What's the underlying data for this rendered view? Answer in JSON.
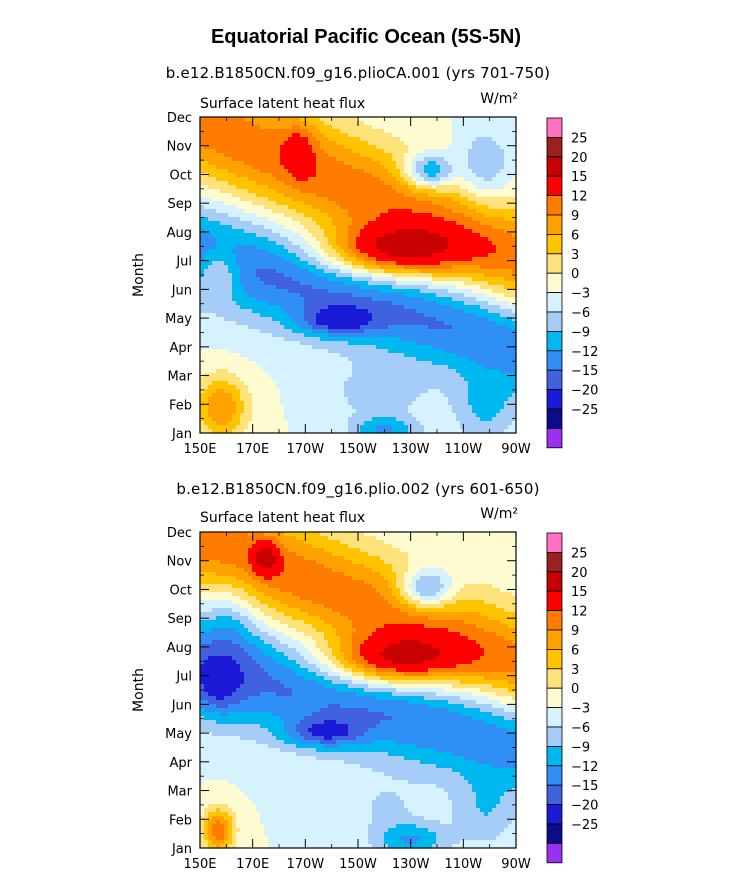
{
  "figure": {
    "title": "Equatorial Pacific Ocean (5S-5N)"
  },
  "palette": [
    "#9b30f0",
    "#0c0c8a",
    "#1b1bd7",
    "#4162e0",
    "#2f8ff5",
    "#00b8f0",
    "#a6cdf7",
    "#d6f2ff",
    "#fffbd0",
    "#ffe27a",
    "#ffc300",
    "#ffa200",
    "#ff7c00",
    "#ff0000",
    "#c80000",
    "#9b2020",
    "#ff71c2"
  ],
  "chart_data": [
    {
      "type": "heatmap",
      "subtitle": "b.e12.B1850CN.f09_g16.plioCA.001 (yrs 701-750)",
      "left_label": "Surface latent heat flux",
      "units": "W/m²",
      "ylabel": "Month",
      "xlabel": "",
      "x_tick_labels": [
        "150E",
        "170E",
        "170W",
        "150W",
        "130W",
        "110W",
        "90W"
      ],
      "x_tick_lons": [
        150,
        170,
        190,
        210,
        230,
        250,
        270
      ],
      "y_tick_labels": [
        "Jan",
        "Feb",
        "Mar",
        "Apr",
        "May",
        "Jun",
        "Jul",
        "Aug",
        "Sep",
        "Oct",
        "Nov",
        "Dec"
      ],
      "levels": [
        -25,
        -20,
        -15,
        -12,
        -9,
        -6,
        -3,
        0,
        3,
        6,
        9,
        12,
        15,
        20,
        25
      ],
      "colorbar_labels": [
        "25",
        "20",
        "15",
        "12",
        "9",
        "6",
        "3",
        "0",
        "−3",
        "−6",
        "−9",
        "−12",
        "−15",
        "−20",
        "−25"
      ],
      "xlim": [
        150,
        270
      ],
      "ylim": [
        1,
        12
      ],
      "features": [
        {
          "kind": "band",
          "lon0": 150,
          "lon1": 270,
          "m0": 7.2,
          "m1": 4.2,
          "width": 1.7,
          "amp": -13
        },
        {
          "kind": "band",
          "lon0": 150,
          "lon1": 270,
          "m0": 11.8,
          "m1": 7.0,
          "width": 2.0,
          "amp": 14
        },
        {
          "kind": "blob",
          "lon": 222,
          "m": 7.3,
          "rl": 26,
          "rm": 0.9,
          "amp": 18
        },
        {
          "kind": "blob",
          "lon": 202,
          "m": 4.9,
          "rl": 14,
          "rm": 0.5,
          "amp": -10
        },
        {
          "kind": "blob",
          "lon": 188,
          "m": 10.9,
          "rl": 6,
          "rm": 1.0,
          "amp": 6
        },
        {
          "kind": "blob",
          "lon": 237,
          "m": 10.1,
          "rl": 9,
          "rm": 0.6,
          "amp": -14
        },
        {
          "kind": "blob",
          "lon": 258,
          "m": 10.2,
          "rl": 10,
          "rm": 1.3,
          "amp": -7
        },
        {
          "kind": "blob",
          "lon": 158,
          "m": 1.9,
          "rl": 10,
          "rm": 1.1,
          "amp": 12
        },
        {
          "kind": "blob",
          "lon": 157,
          "m": 6.6,
          "rl": 9,
          "rm": 0.9,
          "amp": 8
        },
        {
          "kind": "blob",
          "lon": 218,
          "m": 2.4,
          "rl": 17,
          "rm": 0.9,
          "amp": -5
        },
        {
          "kind": "blob",
          "lon": 220,
          "m": 1.1,
          "rl": 13,
          "rm": 0.5,
          "amp": -9
        },
        {
          "kind": "blob",
          "lon": 258,
          "m": 1.8,
          "rl": 12,
          "rm": 1.2,
          "amp": -6
        }
      ]
    },
    {
      "type": "heatmap",
      "subtitle": "b.e12.B1850CN.f09_g16.plio.002 (yrs 601-650)",
      "left_label": "Surface latent heat flux",
      "units": "W/m²",
      "ylabel": "Month",
      "xlabel": "",
      "x_tick_labels": [
        "150E",
        "170E",
        "170W",
        "150W",
        "130W",
        "110W",
        "90W"
      ],
      "x_tick_lons": [
        150,
        170,
        190,
        210,
        230,
        250,
        270
      ],
      "y_tick_labels": [
        "Jan",
        "Feb",
        "Mar",
        "Apr",
        "May",
        "Jun",
        "Jul",
        "Aug",
        "Sep",
        "Oct",
        "Nov",
        "Dec"
      ],
      "levels": [
        -25,
        -20,
        -15,
        -12,
        -9,
        -6,
        -3,
        0,
        3,
        6,
        9,
        12,
        15,
        20,
        25
      ],
      "colorbar_labels": [
        "25",
        "20",
        "15",
        "12",
        "9",
        "6",
        "3",
        "0",
        "−3",
        "−6",
        "−9",
        "−12",
        "−15",
        "−20",
        "−25"
      ],
      "xlim": [
        150,
        270
      ],
      "ylim": [
        1,
        12
      ],
      "features": [
        {
          "kind": "band",
          "lon0": 150,
          "lon1": 270,
          "m0": 7.4,
          "m1": 4.8,
          "width": 1.8,
          "amp": -13
        },
        {
          "kind": "band",
          "lon0": 150,
          "lon1": 270,
          "m0": 11.8,
          "m1": 7.3,
          "width": 2.0,
          "amp": 14
        },
        {
          "kind": "blob",
          "lon": 222,
          "m": 7.5,
          "rl": 26,
          "rm": 0.9,
          "amp": 18
        },
        {
          "kind": "blob",
          "lon": 197,
          "m": 5.0,
          "rl": 14,
          "rm": 0.5,
          "amp": -10
        },
        {
          "kind": "blob",
          "lon": 175,
          "m": 11.1,
          "rl": 5,
          "rm": 0.6,
          "amp": 10
        },
        {
          "kind": "blob",
          "lon": 236,
          "m": 10.0,
          "rl": 10,
          "rm": 0.7,
          "amp": -14
        },
        {
          "kind": "blob",
          "lon": 162,
          "m": 9.0,
          "rl": 10,
          "rm": 1.5,
          "amp": -5
        },
        {
          "kind": "blob",
          "lon": 157,
          "m": 1.6,
          "rl": 6,
          "rm": 0.8,
          "amp": 14
        },
        {
          "kind": "blob",
          "lon": 157,
          "m": 6.5,
          "rl": 9,
          "rm": 1.0,
          "amp": -6
        },
        {
          "kind": "blob",
          "lon": 220,
          "m": 2.4,
          "rl": 15,
          "rm": 0.9,
          "amp": -3
        },
        {
          "kind": "blob",
          "lon": 230,
          "m": 1.3,
          "rl": 14,
          "rm": 0.6,
          "amp": -9
        },
        {
          "kind": "blob",
          "lon": 258,
          "m": 2.2,
          "rl": 12,
          "rm": 1.2,
          "amp": -5
        }
      ]
    }
  ]
}
